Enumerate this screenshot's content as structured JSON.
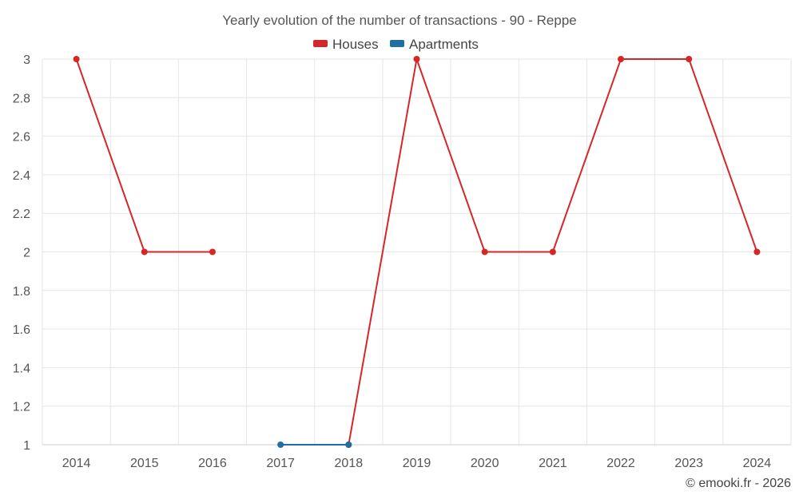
{
  "chart_data": {
    "type": "line",
    "title": "Yearly evolution of the number of transactions - 90 - Reppe",
    "categories": [
      "2014",
      "2015",
      "2016",
      "2017",
      "2018",
      "2019",
      "2020",
      "2021",
      "2022",
      "2023",
      "2024"
    ],
    "ylim": [
      1,
      3
    ],
    "yticks": [
      1,
      1.2,
      1.4,
      1.6,
      1.8,
      2,
      2.2,
      2.4,
      2.6,
      2.8,
      3
    ],
    "grid": true,
    "legend_position": "top-center",
    "series": [
      {
        "name": "Houses",
        "color": "#d62728",
        "values": [
          3,
          2,
          2,
          null,
          1,
          3,
          2,
          2,
          3,
          3,
          2
        ]
      },
      {
        "name": "Apartments",
        "color": "#1f6fa3",
        "values": [
          null,
          null,
          null,
          1,
          1,
          null,
          null,
          null,
          null,
          null,
          null
        ]
      }
    ]
  },
  "credit": "© emooki.fr - 2026"
}
